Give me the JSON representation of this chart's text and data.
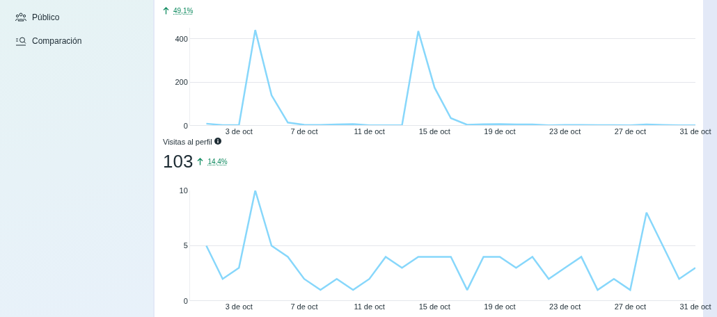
{
  "chart_data": [
    {
      "type": "other",
      "annotations": [
        "Público",
        "Comparación"
      ]
    },
    {
      "type": "line",
      "annotations": [
        "49,1%"
      ],
      "x": [
        "--10-01",
        "--10-02",
        "--10-03",
        "--10-04",
        "--10-05",
        "--10-06",
        "--10-07",
        "--10-08",
        "--10-09",
        "--10-10",
        "--10-11",
        "--10-12",
        "--10-13",
        "--10-14",
        "--10-15",
        "--10-16",
        "--10-17",
        "--10-18",
        "--10-19",
        "--10-20",
        "--10-21",
        "--10-22",
        "--10-23",
        "--10-24",
        "--10-25",
        "--10-26",
        "--10-27",
        "--10-28",
        "--10-29",
        "--10-30",
        "--10-31"
      ],
      "series": [
        {
          "color": "#87d7fb",
          "values": [
            10,
            3,
            3,
            440,
            140,
            15,
            5,
            4,
            6,
            8,
            2,
            2,
            2,
            435,
            175,
            35,
            5,
            7,
            8,
            6,
            6,
            2,
            4,
            4,
            3,
            3,
            2,
            6,
            4,
            2,
            2
          ]
        }
      ],
      "xlim": [
        "--09-30",
        "--10-31"
      ],
      "xticks": [
        {
          "value": "--10-03",
          "label": "3 de oct"
        },
        {
          "value": "--10-07",
          "label": "7 de oct"
        },
        {
          "value": "--10-11",
          "label": "11 de oct"
        },
        {
          "value": "--10-15",
          "label": "15 de oct"
        },
        {
          "value": "--10-19",
          "label": "19 de oct"
        },
        {
          "value": "--10-23",
          "label": "23 de oct"
        },
        {
          "value": "--10-27",
          "label": "27 de oct"
        },
        {
          "value": "--10-31",
          "label": "31 de oct"
        }
      ],
      "ylim": [
        0,
        450
      ],
      "yticks": [
        0,
        200,
        400
      ],
      "grid": "y"
    },
    {
      "type": "line",
      "title": "Visitas al perfil",
      "annotations": [
        "103",
        "14,4%"
      ],
      "x": [
        "--10-01",
        "--10-02",
        "--10-03",
        "--10-04",
        "--10-05",
        "--10-06",
        "--10-07",
        "--10-08",
        "--10-09",
        "--10-10",
        "--10-11",
        "--10-12",
        "--10-13",
        "--10-14",
        "--10-15",
        "--10-16",
        "--10-17",
        "--10-18",
        "--10-19",
        "--10-20",
        "--10-21",
        "--10-22",
        "--10-23",
        "--10-24",
        "--10-25",
        "--10-26",
        "--10-27",
        "--10-28",
        "--10-29",
        "--10-30",
        "--10-31"
      ],
      "series": [
        {
          "color": "#87d7fb",
          "values": [
            5,
            2,
            3,
            10,
            5,
            4,
            2,
            1,
            2,
            1,
            2,
            4,
            3,
            4,
            4,
            4,
            1,
            4,
            4,
            3,
            4,
            2,
            3,
            4,
            1,
            2,
            1,
            8,
            5,
            2,
            3
          ]
        }
      ],
      "xlim": [
        "--09-30",
        "--10-31"
      ],
      "xticks": [
        {
          "value": "--10-03",
          "label": "3 de oct"
        },
        {
          "value": "--10-07",
          "label": "7 de oct"
        },
        {
          "value": "--10-11",
          "label": "11 de oct"
        },
        {
          "value": "--10-15",
          "label": "15 de oct"
        },
        {
          "value": "--10-19",
          "label": "19 de oct"
        },
        {
          "value": "--10-23",
          "label": "23 de oct"
        },
        {
          "value": "--10-27",
          "label": "27 de oct"
        },
        {
          "value": "--10-31",
          "label": "31 de oct"
        }
      ],
      "ylim": [
        0,
        10
      ],
      "yticks": [
        0,
        5,
        10
      ],
      "grid": "y"
    }
  ]
}
